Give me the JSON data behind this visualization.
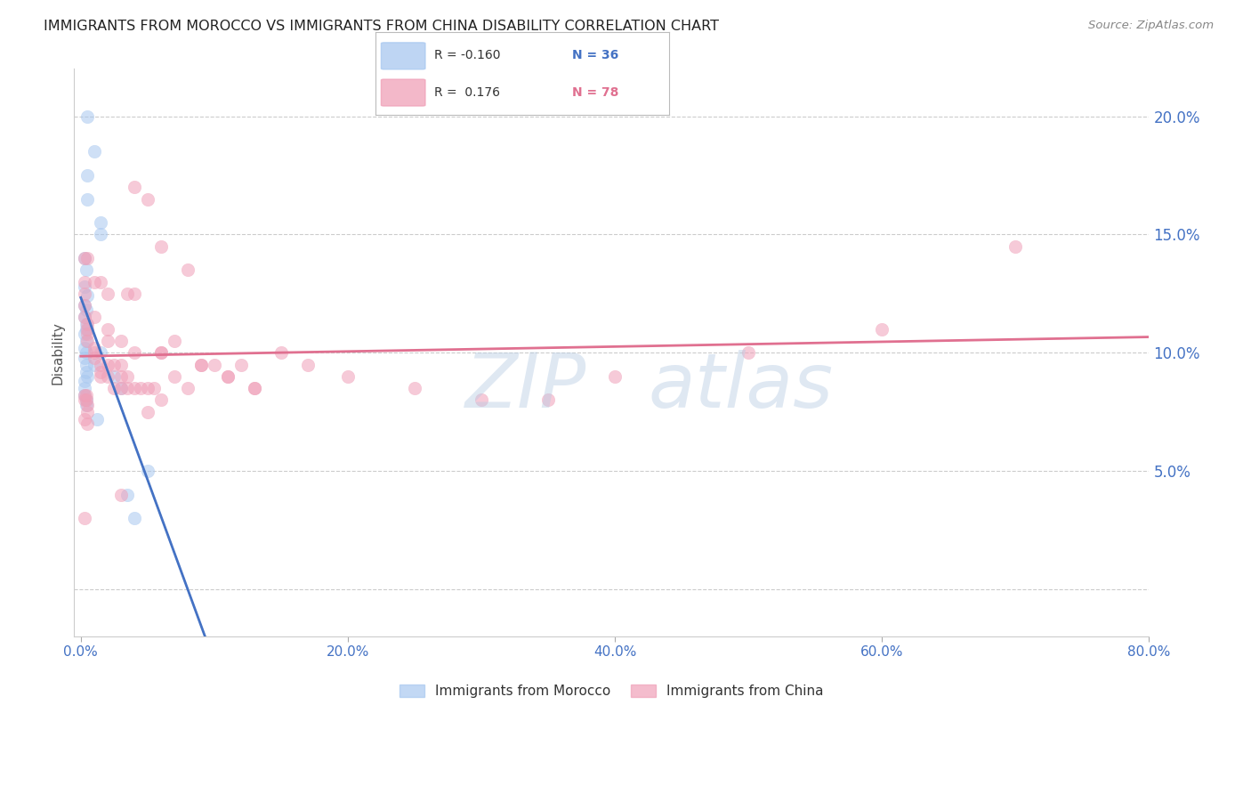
{
  "title": "IMMIGRANTS FROM MOROCCO VS IMMIGRANTS FROM CHINA DISABILITY CORRELATION CHART",
  "source": "Source: ZipAtlas.com",
  "ylabel": "Disability",
  "legend_title_morocco": "Immigrants from Morocco",
  "legend_title_china": "Immigrants from China",
  "morocco_color": "#a8c8f0",
  "china_color": "#f0a0b8",
  "morocco_line_color": "#4472c4",
  "china_line_color": "#e07090",
  "morocco_R": -0.16,
  "morocco_N": 36,
  "china_R": 0.176,
  "china_N": 78,
  "morocco_x": [
    0.5,
    1.0,
    0.5,
    0.5,
    1.5,
    1.5,
    0.3,
    0.4,
    0.3,
    0.5,
    0.3,
    0.4,
    0.3,
    0.4,
    0.4,
    0.3,
    0.4,
    0.3,
    0.4,
    0.3,
    0.4,
    0.4,
    0.5,
    1.0,
    1.5,
    2.5,
    3.0,
    0.3,
    0.3,
    0.4,
    1.2,
    4.0,
    5.0,
    3.5,
    0.3,
    0.4
  ],
  "morocco_y": [
    20.0,
    18.5,
    17.5,
    16.5,
    15.5,
    15.0,
    14.0,
    13.5,
    12.8,
    12.4,
    12.0,
    11.8,
    11.5,
    11.2,
    11.0,
    10.8,
    10.5,
    10.2,
    10.0,
    9.8,
    9.5,
    9.2,
    9.0,
    9.5,
    10.0,
    9.0,
    8.5,
    8.8,
    8.2,
    7.8,
    7.2,
    3.0,
    5.0,
    4.0,
    8.5,
    8.0
  ],
  "china_x": [
    0.3,
    0.3,
    0.3,
    0.3,
    0.3,
    0.5,
    0.5,
    0.5,
    0.5,
    1.0,
    1.0,
    1.0,
    1.5,
    1.5,
    1.5,
    2.0,
    2.0,
    2.0,
    2.5,
    2.5,
    3.0,
    3.0,
    3.0,
    3.5,
    3.5,
    4.0,
    4.5,
    5.0,
    5.0,
    5.5,
    6.0,
    6.0,
    7.0,
    8.0,
    9.0,
    10.0,
    11.0,
    12.0,
    13.0,
    15.0,
    17.0,
    20.0,
    25.0,
    30.0,
    35.0,
    40.0,
    50.0,
    60.0,
    70.0,
    4.0,
    5.0,
    6.0,
    8.0,
    4.0,
    3.5,
    2.0,
    1.5,
    1.0,
    0.5,
    1.0,
    2.0,
    3.0,
    4.0,
    6.0,
    7.0,
    9.0,
    11.0,
    13.0,
    0.5,
    3.0,
    0.3,
    0.3,
    0.5,
    0.3,
    0.4,
    0.4,
    0.5,
    0.3
  ],
  "china_y": [
    14.0,
    13.0,
    12.5,
    12.0,
    11.5,
    11.2,
    11.0,
    10.8,
    10.5,
    10.2,
    10.0,
    9.8,
    9.5,
    9.2,
    9.0,
    10.5,
    9.5,
    9.0,
    9.5,
    8.5,
    9.5,
    9.0,
    8.5,
    9.0,
    8.5,
    8.5,
    8.5,
    8.5,
    7.5,
    8.5,
    8.0,
    10.0,
    9.0,
    8.5,
    9.5,
    9.5,
    9.0,
    9.5,
    8.5,
    10.0,
    9.5,
    9.0,
    8.5,
    8.0,
    8.0,
    9.0,
    10.0,
    11.0,
    14.5,
    17.0,
    16.5,
    14.5,
    13.5,
    12.5,
    12.5,
    12.5,
    13.0,
    13.0,
    14.0,
    11.5,
    11.0,
    10.5,
    10.0,
    10.0,
    10.5,
    9.5,
    9.0,
    8.5,
    7.0,
    4.0,
    3.0,
    8.2,
    7.8,
    8.0,
    8.0,
    8.2,
    7.5,
    7.2
  ],
  "ytick_positions": [
    0,
    5,
    10,
    15,
    20
  ],
  "ytick_labels": [
    "",
    "5.0%",
    "10.0%",
    "15.0%",
    "20.0%"
  ],
  "xtick_positions": [
    0,
    20,
    40,
    60,
    80
  ],
  "xtick_labels": [
    "0.0%",
    "20.0%",
    "40.0%",
    "60.0%",
    "80.0%"
  ],
  "xlim": [
    -0.5,
    80
  ],
  "ylim": [
    -2,
    22
  ],
  "watermark_zip": "ZIP",
  "watermark_atlas": "atlas",
  "axis_color": "#4472c4",
  "grid_color": "#cccccc",
  "title_color": "#222222",
  "source_color": "#888888",
  "scatter_size": 110,
  "scatter_alpha": 0.55
}
